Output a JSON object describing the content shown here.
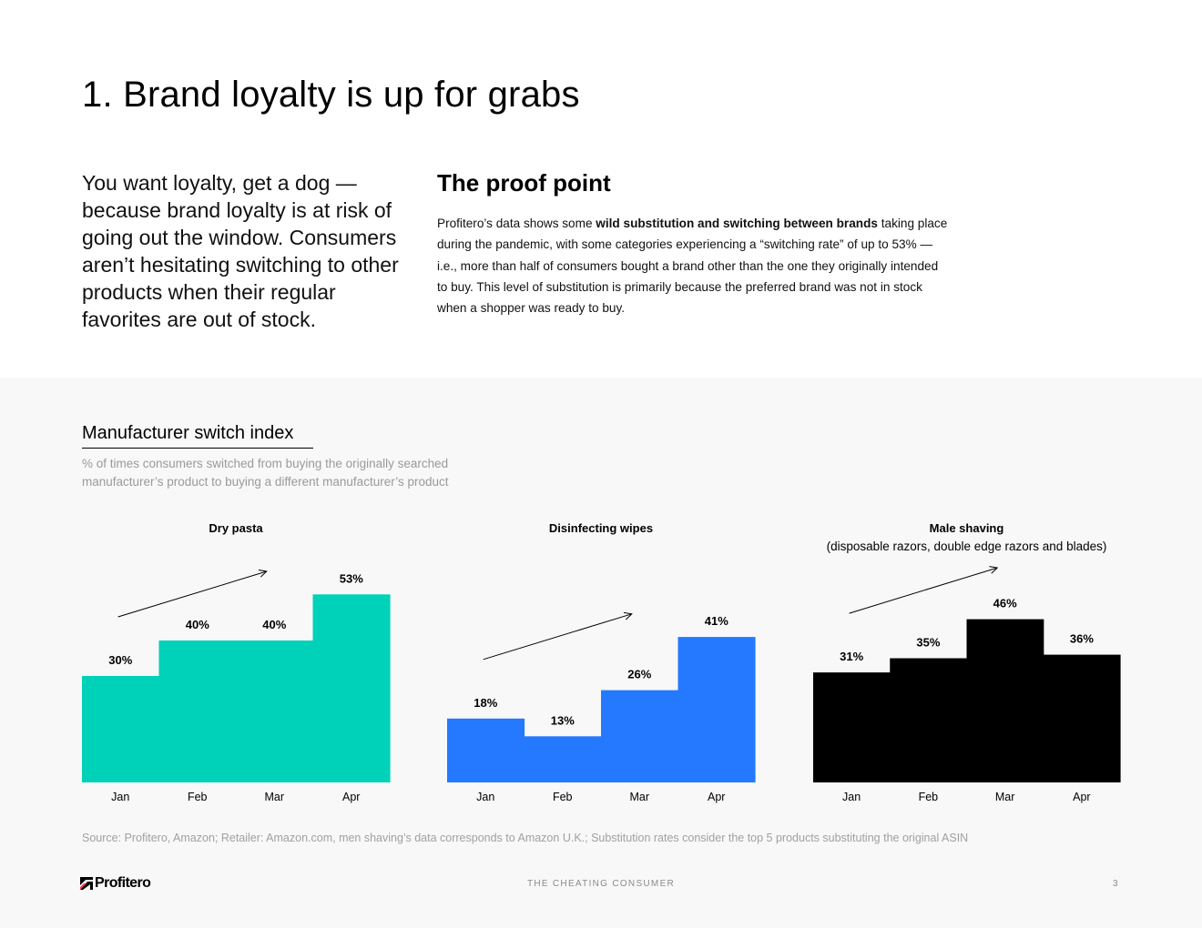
{
  "page": {
    "title": "1. Brand loyalty is up for grabs",
    "intro": "You want loyalty, get a dog — because brand loyalty is at risk of going out the window. Consumers aren’t hesitating switching to other products when their regular favorites are out of stock.",
    "proof_title": "The proof point",
    "proof_lead": "Profitero’s data shows some ",
    "proof_bold": "wild substitution and switching between brands",
    "proof_rest": " taking place during the pandemic, with some categories experiencing a “switching rate” of up to 53% — i.e., more than half of consumers bought a brand other than the one they originally intended to buy. This level of substitution is primarily because the preferred brand was not in stock when a shopper was ready to buy."
  },
  "index": {
    "title": "Manufacturer switch index",
    "subtitle": "% of times consumers switched from buying the originally searched manufacturer’s product to buying a different manufacturer’s product"
  },
  "chart_data": [
    {
      "type": "bar",
      "title": "Dry pasta",
      "subtitle": "",
      "categories": [
        "Jan",
        "Feb",
        "Mar",
        "Apr"
      ],
      "values": [
        30,
        40,
        40,
        53
      ],
      "labels": [
        "30%",
        "40%",
        "40%",
        "53%"
      ],
      "color": "#00d2b9",
      "ylim": [
        0,
        60
      ],
      "trend_arrow": true
    },
    {
      "type": "bar",
      "title": "Disinfecting wipes",
      "subtitle": "",
      "categories": [
        "Jan",
        "Feb",
        "Mar",
        "Apr"
      ],
      "values": [
        18,
        13,
        26,
        41
      ],
      "labels": [
        "18%",
        "13%",
        "26%",
        "41%"
      ],
      "color": "#2479ff",
      "ylim": [
        0,
        60
      ],
      "trend_arrow": true
    },
    {
      "type": "bar",
      "title": "Male shaving",
      "subtitle": "(disposable razors, double edge razors and blades)",
      "categories": [
        "Jan",
        "Feb",
        "Mar",
        "Apr"
      ],
      "values": [
        31,
        35,
        46,
        36
      ],
      "labels": [
        "31%",
        "35%",
        "46%",
        "36%"
      ],
      "color": "#000000",
      "ylim": [
        0,
        60
      ],
      "trend_arrow": true
    }
  ],
  "source": "Source: Profitero, Amazon; Retailer: Amazon.com, men shaving’s data corresponds to Amazon U.K.; Substitution rates consider the top 5 products substituting the original ASIN",
  "footer": {
    "logo_text": "Profitero",
    "center": "THE CHEATING CONSUMER",
    "page_number": "3"
  }
}
